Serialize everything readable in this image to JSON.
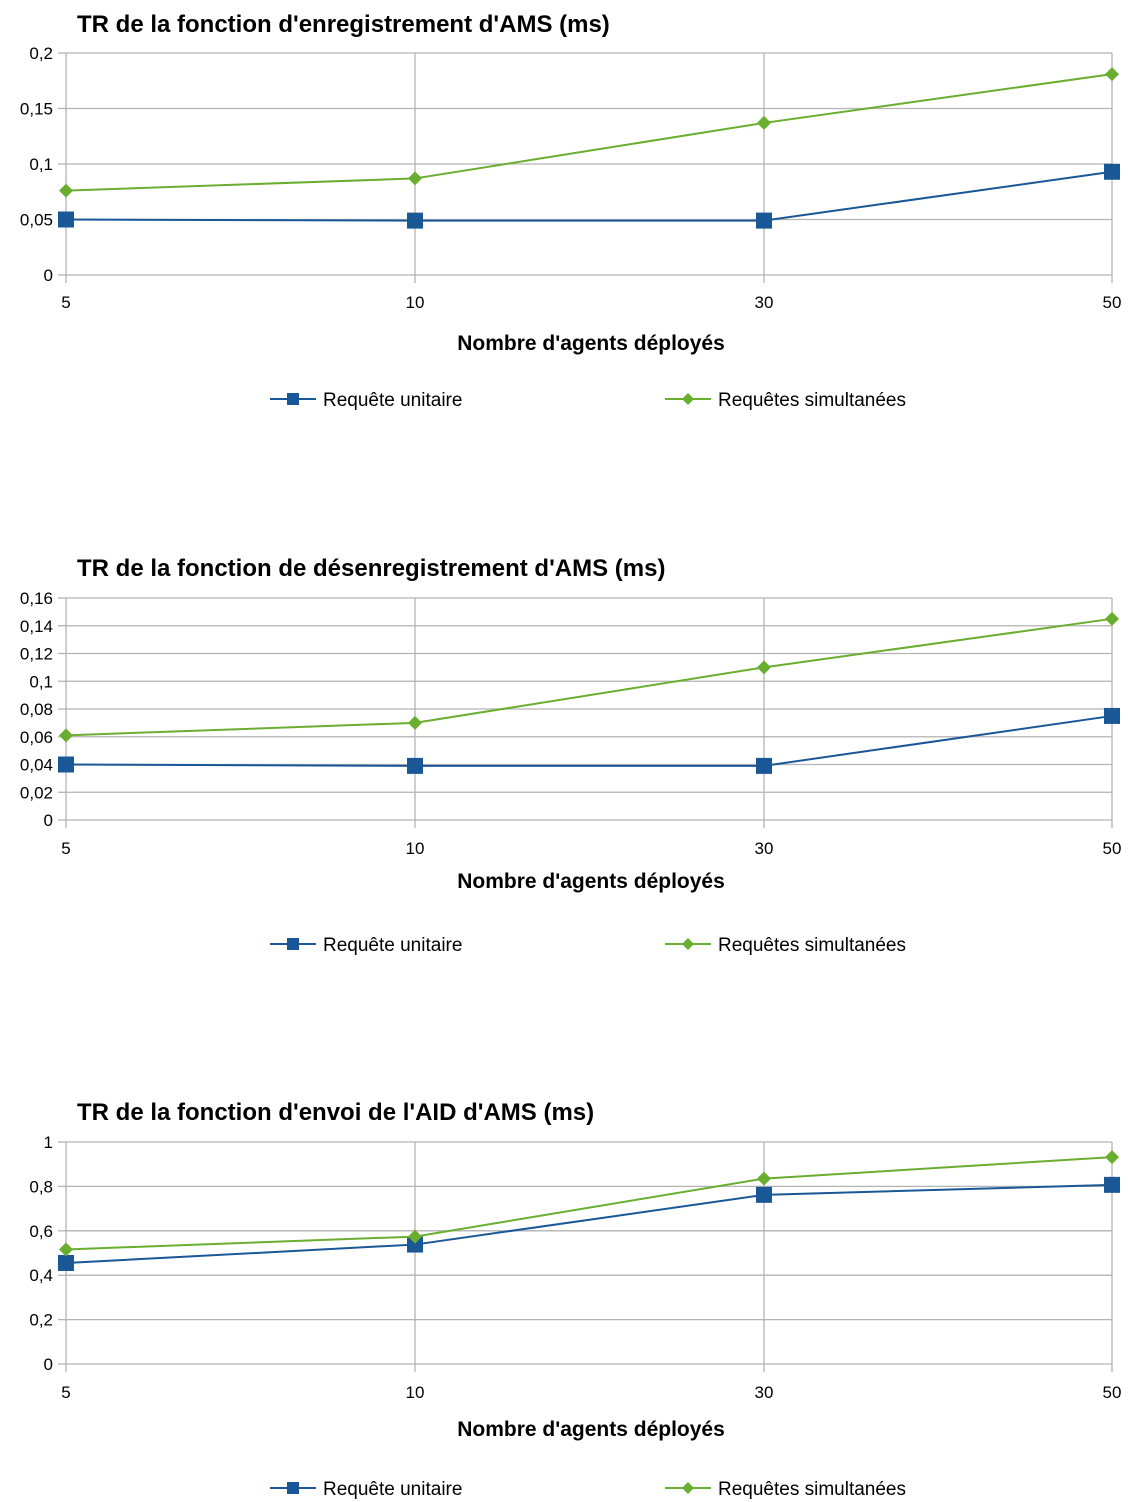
{
  "colors": {
    "series1": "#1a5796",
    "series2": "#6aae2f",
    "grid": "#b3b3b3",
    "axis": "#b3b3b3"
  },
  "chart_data": [
    {
      "type": "line",
      "title": "TR de la fonction d'enregistrement d'AMS (ms)",
      "xlabel": "Nombre d'agents déployés",
      "ylabel": "",
      "categories": [
        "5",
        "10",
        "30",
        "50"
      ],
      "ylim": [
        0,
        0.2
      ],
      "yticks": [
        0,
        0.05,
        0.1,
        0.15,
        0.2
      ],
      "ytick_labels": [
        "0",
        "0,05",
        "0,1",
        "0,15",
        "0,2"
      ],
      "grid": true,
      "legend": "bottom",
      "series": [
        {
          "name": "Requête unitaire",
          "marker": "square",
          "values": [
            0.05,
            0.049,
            0.049,
            0.093
          ]
        },
        {
          "name": "Requêtes simultanées",
          "marker": "diamond",
          "values": [
            0.076,
            0.087,
            0.137,
            0.181
          ]
        }
      ]
    },
    {
      "type": "line",
      "title": "TR de la fonction de désenregistrement d'AMS (ms)",
      "xlabel": "Nombre d'agents déployés",
      "ylabel": "",
      "categories": [
        "5",
        "10",
        "30",
        "50"
      ],
      "ylim": [
        0,
        0.16
      ],
      "yticks": [
        0,
        0.02,
        0.04,
        0.06,
        0.08,
        0.1,
        0.12,
        0.14,
        0.16
      ],
      "ytick_labels": [
        "0",
        "0,02",
        "0,04",
        "0,06",
        "0,08",
        "0,1",
        "0,12",
        "0,14",
        "0,16"
      ],
      "grid": true,
      "legend": "bottom",
      "series": [
        {
          "name": "Requête unitaire",
          "marker": "square",
          "values": [
            0.04,
            0.039,
            0.039,
            0.075
          ]
        },
        {
          "name": "Requêtes simultanées",
          "marker": "diamond",
          "values": [
            0.061,
            0.07,
            0.11,
            0.145
          ]
        }
      ]
    },
    {
      "type": "line",
      "title": "TR de la fonction d'envoi de l'AID d'AMS (ms)",
      "xlabel": "Nombre d'agents déployés",
      "ylabel": "",
      "categories": [
        "5",
        "10",
        "30",
        "50"
      ],
      "ylim": [
        0,
        1
      ],
      "yticks": [
        0,
        0.2,
        0.4,
        0.6,
        0.8,
        1
      ],
      "ytick_labels": [
        "0",
        "0,2",
        "0,4",
        "0,6",
        "0,8",
        "1"
      ],
      "grid": true,
      "legend": "bottom",
      "series": [
        {
          "name": "Requête unitaire",
          "marker": "square",
          "values": [
            0.455,
            0.538,
            0.762,
            0.807
          ]
        },
        {
          "name": "Requêtes simultanées",
          "marker": "diamond",
          "values": [
            0.516,
            0.574,
            0.835,
            0.932
          ]
        }
      ]
    }
  ]
}
